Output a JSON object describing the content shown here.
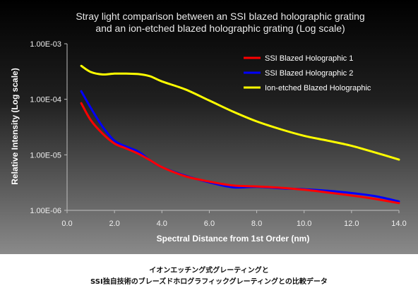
{
  "chart_data": {
    "type": "line",
    "title": [
      "Stray light comparison between an SSI blazed holographic grating",
      "and an ion-etched blazed holographic grating (Log scale)"
    ],
    "xlabel": "Spectral Distance from 1st Order (nm)",
    "ylabel": "Relative Intensity (Log scale)",
    "xlim": [
      0,
      14
    ],
    "ylim": [
      1e-06,
      0.001
    ],
    "yscale": "log",
    "xticks": [
      "0.0",
      "2.0",
      "4.0",
      "6.0",
      "8.0",
      "10.0",
      "12.0",
      "14.0"
    ],
    "yticks": [
      "1.00E-03",
      "1.00E-04",
      "1.00E-05",
      "1.00E-06"
    ],
    "legend_position": "top-right",
    "series": [
      {
        "name": "SSI Blazed Holographic 1",
        "color": "#ff0000",
        "x": [
          0.6,
          1.0,
          1.5,
          2.0,
          2.5,
          3.0,
          3.5,
          4.0,
          5.0,
          6.0,
          7.0,
          8.0,
          9.0,
          10.0,
          11.0,
          12.0,
          13.0,
          14.0
        ],
        "y": [
          8.5e-05,
          4.2e-05,
          2.4e-05,
          1.6e-05,
          1.3e-05,
          1.05e-05,
          8e-06,
          6e-06,
          4.1e-06,
          3.3e-06,
          2.8e-06,
          2.7e-06,
          2.55e-06,
          2.35e-06,
          2.1e-06,
          1.85e-06,
          1.6e-06,
          1.35e-06
        ]
      },
      {
        "name": "SSI Blazed Holographic 2",
        "color": "#0000ff",
        "x": [
          0.6,
          1.0,
          1.5,
          2.0,
          2.5,
          3.0,
          3.5,
          4.0,
          5.0,
          6.0,
          7.0,
          8.0,
          9.0,
          10.0,
          11.0,
          12.0,
          13.0,
          14.0
        ],
        "y": [
          0.00014,
          7e-05,
          3.2e-05,
          1.8e-05,
          1.4e-05,
          1.15e-05,
          8e-06,
          6e-06,
          4.2e-06,
          3.2e-06,
          2.6e-06,
          2.65e-06,
          2.5e-06,
          2.4e-06,
          2.25e-06,
          2.05e-06,
          1.8e-06,
          1.45e-06
        ]
      },
      {
        "name": "Ion-etched Blazed Holographic",
        "color": "#ffff00",
        "x": [
          0.6,
          1.0,
          1.5,
          2.0,
          2.5,
          3.0,
          3.5,
          4.0,
          5.0,
          6.0,
          7.0,
          8.0,
          9.0,
          10.0,
          11.0,
          12.0,
          13.0,
          14.0
        ],
        "y": [
          0.0004,
          0.00031,
          0.00028,
          0.00029,
          0.00029,
          0.000285,
          0.00026,
          0.00021,
          0.00015,
          9.5e-05,
          6e-05,
          4e-05,
          2.9e-05,
          2.2e-05,
          1.8e-05,
          1.45e-05,
          1.1e-05,
          8.2e-06
        ]
      }
    ]
  },
  "caption": [
    "イオンエッチング式グレーティングと",
    "SSI独自技術のブレーズドホログラフィックグレーティングとの比較データ"
  ]
}
